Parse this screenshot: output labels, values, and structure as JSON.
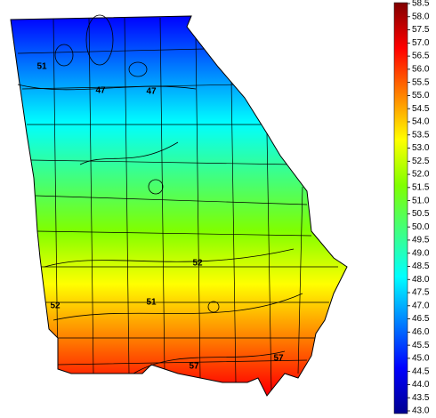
{
  "map": {
    "colorbar": {
      "lim": [
        43.0,
        58.5
      ],
      "colors": [
        "#00008f",
        "#0000ff",
        "#0080ff",
        "#00ffff",
        "#40ff80",
        "#80ff00",
        "#ffff00",
        "#ff8000",
        "#ff0000",
        "#800000"
      ],
      "ticks": [
        {
          "value": 58.5,
          "label": "58.5"
        },
        {
          "value": 58,
          "label": "58.0"
        },
        {
          "value": 57.5,
          "label": "57.5"
        },
        {
          "value": 57,
          "label": "57.0"
        },
        {
          "value": 56.5,
          "label": "56.5"
        },
        {
          "value": 56,
          "label": "56.0"
        },
        {
          "value": 55.5,
          "label": "55.5"
        },
        {
          "value": 55,
          "label": "55.0"
        },
        {
          "value": 54.5,
          "label": "54.5"
        },
        {
          "value": 54,
          "label": "54.0"
        },
        {
          "value": 53.5,
          "label": "53.5"
        },
        {
          "value": 53,
          "label": "53.0"
        },
        {
          "value": 52.5,
          "label": "52.5"
        },
        {
          "value": 52,
          "label": "52.0"
        },
        {
          "value": 51.5,
          "label": "51.5"
        },
        {
          "value": 51,
          "label": "51.0"
        },
        {
          "value": 50.5,
          "label": "50.5"
        },
        {
          "value": 50,
          "label": "50.0"
        },
        {
          "value": 49.5,
          "label": "49.5"
        },
        {
          "value": 49,
          "label": "49.0"
        },
        {
          "value": 48.5,
          "label": "48.5"
        },
        {
          "value": 48,
          "label": "48.0"
        },
        {
          "value": 47.5,
          "label": "47.5"
        },
        {
          "value": 47,
          "label": "47.0"
        },
        {
          "value": 46.5,
          "label": "46.5"
        },
        {
          "value": 46,
          "label": "46.0"
        },
        {
          "value": 45.5,
          "label": "45.5"
        },
        {
          "value": 45,
          "label": "45.0"
        },
        {
          "value": 44.5,
          "label": "44.5"
        },
        {
          "value": 44,
          "label": "44.0"
        },
        {
          "value": 43.5,
          "label": "43.5"
        },
        {
          "value": 43,
          "label": "43.0"
        }
      ]
    },
    "contour_labels": [
      "51",
      "47",
      "47",
      "52",
      "52",
      "51",
      "57",
      "57"
    ]
  }
}
